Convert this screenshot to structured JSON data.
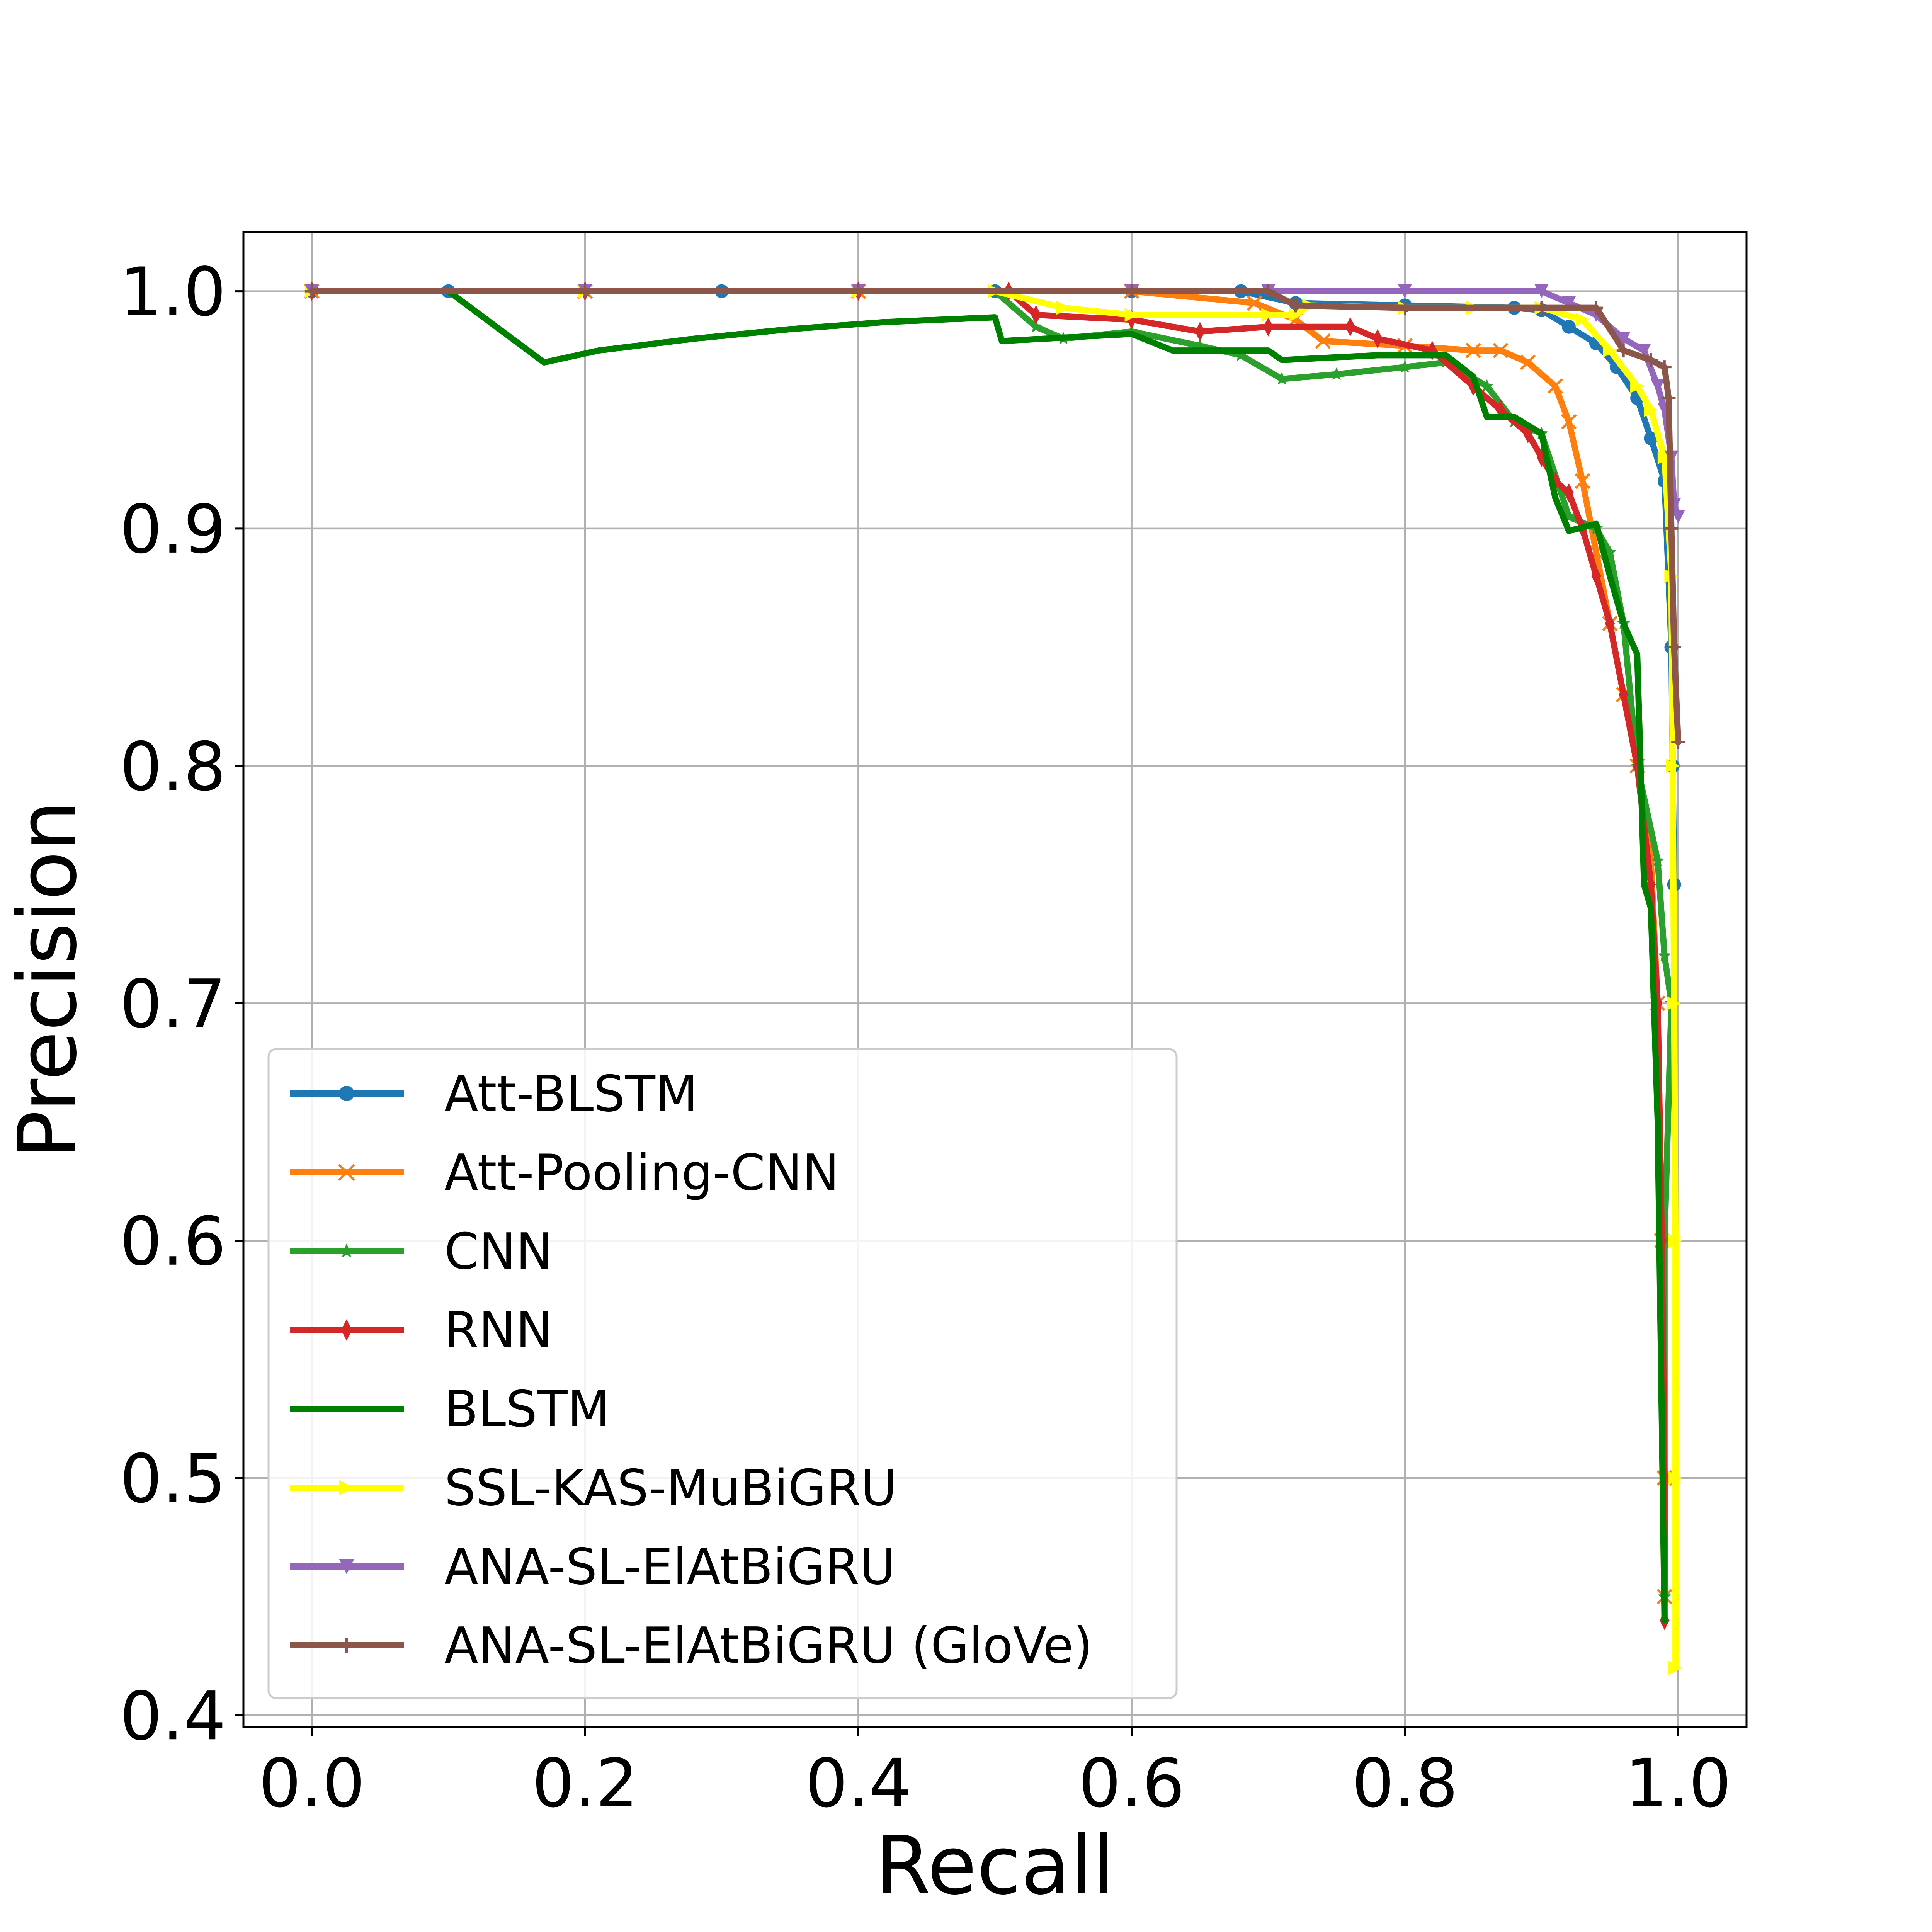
{
  "chart_data": {
    "type": "line",
    "title": "",
    "xlabel": "Recall",
    "ylabel": "Precision",
    "xlim": [
      -0.05,
      1.05
    ],
    "ylim": [
      0.395,
      1.025
    ],
    "grid": true,
    "legend_position": "lower-left",
    "x_ticks": [
      "0.0",
      "0.2",
      "0.4",
      "0.6",
      "0.8",
      "1.0"
    ],
    "y_ticks": [
      "0.4",
      "0.5",
      "0.6",
      "0.7",
      "0.8",
      "0.9",
      "1.0"
    ],
    "series": [
      {
        "name": "Att-BLSTM",
        "color": "#1f77b4",
        "marker": "circle",
        "points": [
          [
            0,
            1.0
          ],
          [
            0.1,
            1.0
          ],
          [
            0.3,
            1.0
          ],
          [
            0.5,
            1.0
          ],
          [
            0.6,
            1.0
          ],
          [
            0.68,
            1.0
          ],
          [
            0.72,
            0.995
          ],
          [
            0.8,
            0.994
          ],
          [
            0.88,
            0.993
          ],
          [
            0.9,
            0.992
          ],
          [
            0.92,
            0.985
          ],
          [
            0.94,
            0.978
          ],
          [
            0.955,
            0.968
          ],
          [
            0.97,
            0.955
          ],
          [
            0.98,
            0.938
          ],
          [
            0.99,
            0.92
          ],
          [
            0.995,
            0.85
          ],
          [
            0.996,
            0.8
          ],
          [
            0.997,
            0.75
          ]
        ]
      },
      {
        "name": "Att-Pooling-CNN",
        "color": "#ff7f0e",
        "marker": "x",
        "points": [
          [
            0,
            1.0
          ],
          [
            0.2,
            1.0
          ],
          [
            0.4,
            1.0
          ],
          [
            0.6,
            1.0
          ],
          [
            0.69,
            0.995
          ],
          [
            0.72,
            0.988
          ],
          [
            0.74,
            0.979
          ],
          [
            0.8,
            0.977
          ],
          [
            0.85,
            0.975
          ],
          [
            0.87,
            0.975
          ],
          [
            0.89,
            0.97
          ],
          [
            0.91,
            0.96
          ],
          [
            0.92,
            0.945
          ],
          [
            0.93,
            0.92
          ],
          [
            0.94,
            0.89
          ],
          [
            0.95,
            0.86
          ],
          [
            0.96,
            0.83
          ],
          [
            0.97,
            0.8
          ],
          [
            0.98,
            0.76
          ],
          [
            0.985,
            0.7
          ],
          [
            0.988,
            0.6
          ],
          [
            0.99,
            0.5
          ],
          [
            0.99,
            0.45
          ]
        ]
      },
      {
        "name": "CNN",
        "color": "#2ca02c",
        "marker": "star",
        "points": [
          [
            0,
            1.0
          ],
          [
            0.2,
            1.0
          ],
          [
            0.5,
            1.0
          ],
          [
            0.53,
            0.985
          ],
          [
            0.55,
            0.98
          ],
          [
            0.6,
            0.983
          ],
          [
            0.65,
            0.977
          ],
          [
            0.68,
            0.973
          ],
          [
            0.71,
            0.963
          ],
          [
            0.75,
            0.965
          ],
          [
            0.8,
            0.968
          ],
          [
            0.83,
            0.97
          ],
          [
            0.86,
            0.96
          ],
          [
            0.88,
            0.945
          ],
          [
            0.9,
            0.94
          ],
          [
            0.92,
            0.905
          ],
          [
            0.94,
            0.9
          ],
          [
            0.95,
            0.89
          ],
          [
            0.96,
            0.86
          ],
          [
            0.97,
            0.8
          ],
          [
            0.985,
            0.76
          ],
          [
            0.99,
            0.72
          ],
          [
            0.995,
            0.7
          ],
          [
            0.99,
            0.6
          ],
          [
            0.99,
            0.45
          ]
        ]
      },
      {
        "name": "RNN",
        "color": "#d62728",
        "marker": "thin_diamond",
        "points": [
          [
            0,
            1.0
          ],
          [
            0.2,
            1.0
          ],
          [
            0.4,
            1.0
          ],
          [
            0.51,
            1.0
          ],
          [
            0.53,
            0.99
          ],
          [
            0.6,
            0.988
          ],
          [
            0.65,
            0.983
          ],
          [
            0.7,
            0.985
          ],
          [
            0.76,
            0.985
          ],
          [
            0.78,
            0.98
          ],
          [
            0.82,
            0.975
          ],
          [
            0.85,
            0.96
          ],
          [
            0.87,
            0.95
          ],
          [
            0.89,
            0.94
          ],
          [
            0.9,
            0.93
          ],
          [
            0.91,
            0.92
          ],
          [
            0.92,
            0.915
          ],
          [
            0.93,
            0.9
          ],
          [
            0.94,
            0.88
          ],
          [
            0.95,
            0.86
          ],
          [
            0.96,
            0.83
          ],
          [
            0.97,
            0.8
          ],
          [
            0.98,
            0.75
          ],
          [
            0.985,
            0.7
          ],
          [
            0.988,
            0.6
          ],
          [
            0.99,
            0.5
          ],
          [
            0.99,
            0.44
          ]
        ]
      },
      {
        "name": "BLSTM",
        "color": "#008000",
        "marker": "none",
        "points": [
          [
            0,
            1.0
          ],
          [
            0.1,
            1.0
          ],
          [
            0.17,
            0.97
          ],
          [
            0.21,
            0.975
          ],
          [
            0.28,
            0.98
          ],
          [
            0.35,
            0.984
          ],
          [
            0.42,
            0.987
          ],
          [
            0.5,
            0.989
          ],
          [
            0.505,
            0.979
          ],
          [
            0.6,
            0.982
          ],
          [
            0.63,
            0.975
          ],
          [
            0.7,
            0.975
          ],
          [
            0.71,
            0.971
          ],
          [
            0.78,
            0.973
          ],
          [
            0.83,
            0.973
          ],
          [
            0.85,
            0.964
          ],
          [
            0.86,
            0.947
          ],
          [
            0.88,
            0.947
          ],
          [
            0.9,
            0.94
          ],
          [
            0.91,
            0.913
          ],
          [
            0.92,
            0.899
          ],
          [
            0.94,
            0.902
          ],
          [
            0.95,
            0.88
          ],
          [
            0.96,
            0.86
          ],
          [
            0.97,
            0.847
          ],
          [
            0.975,
            0.75
          ],
          [
            0.98,
            0.74
          ],
          [
            0.985,
            0.65
          ],
          [
            0.99,
            0.44
          ]
        ]
      },
      {
        "name": "SSL-KAS-MuBiGRU",
        "color": "#ffff00",
        "marker": "triangle_right",
        "points": [
          [
            0,
            1.0
          ],
          [
            0.2,
            1.0
          ],
          [
            0.4,
            1.0
          ],
          [
            0.5,
            1.0
          ],
          [
            0.55,
            0.993
          ],
          [
            0.6,
            0.99
          ],
          [
            0.7,
            0.99
          ],
          [
            0.72,
            0.99
          ],
          [
            0.73,
            0.994
          ],
          [
            0.8,
            0.993
          ],
          [
            0.85,
            0.993
          ],
          [
            0.9,
            0.993
          ],
          [
            0.93,
            0.988
          ],
          [
            0.95,
            0.975
          ],
          [
            0.97,
            0.96
          ],
          [
            0.98,
            0.95
          ],
          [
            0.99,
            0.93
          ],
          [
            0.995,
            0.88
          ],
          [
            0.996,
            0.8
          ],
          [
            0.997,
            0.7
          ],
          [
            0.998,
            0.6
          ],
          [
            0.998,
            0.5
          ],
          [
            0.998,
            0.42
          ]
        ]
      },
      {
        "name": "ANA-SL-ElAtBiGRU",
        "color": "#9467bd",
        "marker": "triangle_down",
        "points": [
          [
            0,
            1.0
          ],
          [
            0.2,
            1.0
          ],
          [
            0.4,
            1.0
          ],
          [
            0.6,
            1.0
          ],
          [
            0.7,
            1.0
          ],
          [
            0.8,
            1.0
          ],
          [
            0.9,
            1.0
          ],
          [
            0.92,
            0.995
          ],
          [
            0.94,
            0.99
          ],
          [
            0.96,
            0.98
          ],
          [
            0.975,
            0.975
          ],
          [
            0.985,
            0.96
          ],
          [
            0.99,
            0.95
          ],
          [
            0.995,
            0.93
          ],
          [
            0.997,
            0.91
          ],
          [
            1.0,
            0.905
          ]
        ]
      },
      {
        "name": "ANA-SL-ElAtBiGRU (GloVe)",
        "color": "#8c564b",
        "marker": "plus",
        "points": [
          [
            0,
            1.0
          ],
          [
            0.2,
            1.0
          ],
          [
            0.4,
            1.0
          ],
          [
            0.6,
            1.0
          ],
          [
            0.7,
            1.0
          ],
          [
            0.72,
            0.994
          ],
          [
            0.8,
            0.993
          ],
          [
            0.9,
            0.993
          ],
          [
            0.94,
            0.993
          ],
          [
            0.96,
            0.975
          ],
          [
            0.98,
            0.971
          ],
          [
            0.99,
            0.968
          ],
          [
            0.993,
            0.955
          ],
          [
            0.995,
            0.9
          ],
          [
            0.997,
            0.85
          ],
          [
            1.0,
            0.81
          ]
        ]
      }
    ]
  }
}
